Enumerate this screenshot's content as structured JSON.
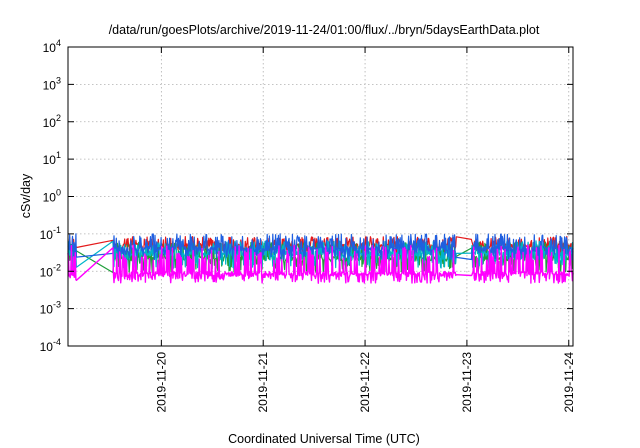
{
  "chart_data": {
    "type": "line",
    "title": "/data/run/goesPlots/archive/2019-11-24/01:00/flux/../bryn/5daysEarthData.plot",
    "xlabel": "Coordinated Universal Time (UTC)",
    "ylabel": "cSv/day",
    "yscale": "log",
    "ylim": [
      0.0001,
      10000
    ],
    "xlim": [
      "2019-11-19 02:00",
      "2019-11-24 01:00"
    ],
    "y_ticks": [
      {
        "base": "10",
        "exp": "-4",
        "value": 0.0001
      },
      {
        "base": "10",
        "exp": "-3",
        "value": 0.001
      },
      {
        "base": "10",
        "exp": "-2",
        "value": 0.01
      },
      {
        "base": "10",
        "exp": "-1",
        "value": 0.1
      },
      {
        "base": "10",
        "exp": "0",
        "value": 1
      },
      {
        "base": "10",
        "exp": "1",
        "value": 10
      },
      {
        "base": "10",
        "exp": "2",
        "value": 100
      },
      {
        "base": "10",
        "exp": "3",
        "value": 1000
      },
      {
        "base": "10",
        "exp": "4",
        "value": 10000
      }
    ],
    "x_ticks": [
      "2019-11-20",
      "2019-11-21",
      "2019-11-22",
      "2019-11-23",
      "2019-11-24"
    ],
    "grid": true,
    "legend": "none",
    "series": [
      {
        "color": "#e41a1c",
        "base": 0.048,
        "spike_max": 0.085,
        "dip_min": 0.03
      },
      {
        "color": "#1f9e3a",
        "base": 0.022,
        "spike_max": 0.06,
        "dip_min": 0.009
      },
      {
        "color": "#00b4c8",
        "base": 0.03,
        "spike_max": 0.065,
        "dip_min": 0.012
      },
      {
        "color": "#1f5fe0",
        "base": 0.04,
        "spike_max": 0.1,
        "dip_min": 0.02
      },
      {
        "color": "#ff00ff",
        "base": 0.0085,
        "spike_max": 0.05,
        "dip_min": 0.0048
      }
    ],
    "data_gaps": [
      [
        "2019-11-19 04:00",
        "2019-11-19 12:30"
      ],
      [
        "2019-11-22 21:30",
        "2019-11-23 01:00"
      ]
    ]
  }
}
